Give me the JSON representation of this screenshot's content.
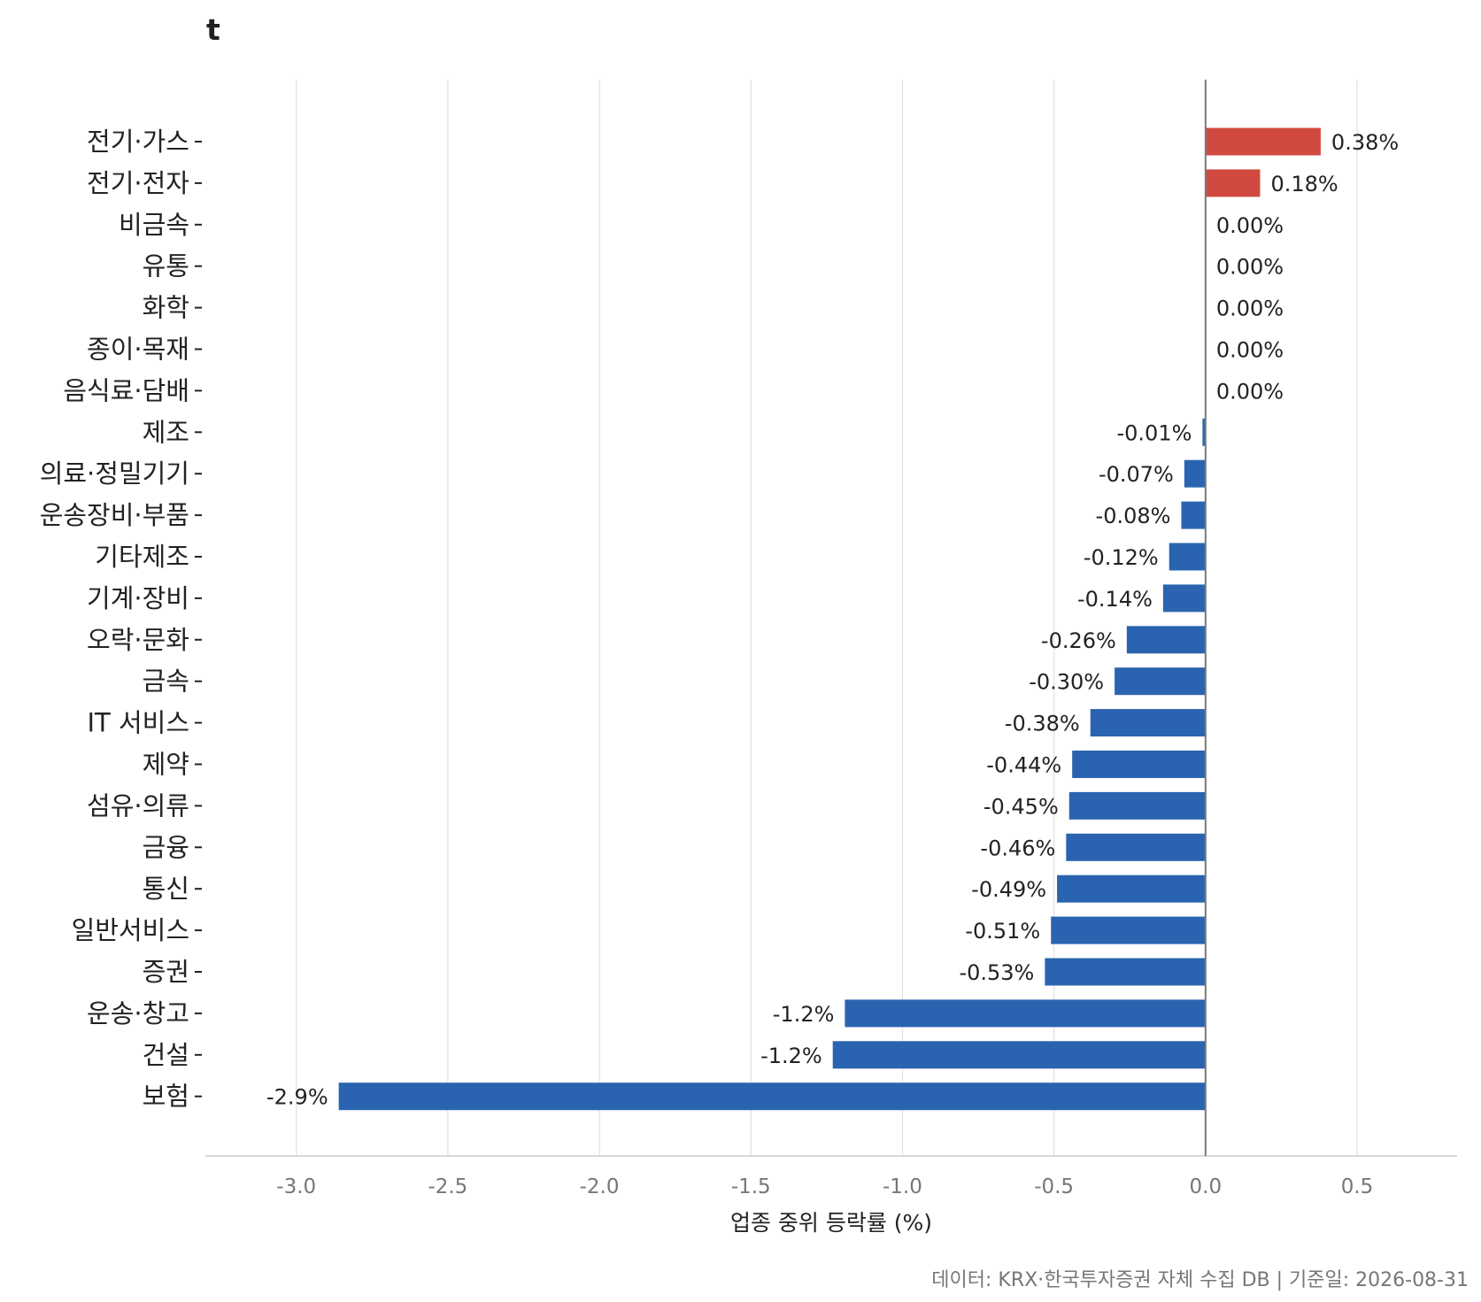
{
  "chart_data": {
    "type": "bar",
    "orientation": "horizontal",
    "title": "t",
    "xlabel": "업종 중위 등락률 (%)",
    "ylabel": "",
    "xlim": [
      -3.3,
      0.83
    ],
    "xticks": [
      -3.0,
      -2.5,
      -2.0,
      -1.5,
      -1.0,
      -0.5,
      0.0,
      0.5
    ],
    "xtick_labels": [
      "-3.0",
      "-2.5",
      "-2.0",
      "-1.5",
      "-1.0",
      "-0.5",
      "0.0",
      "0.5"
    ],
    "grid": "vertical",
    "categories": [
      "전기·가스",
      "전기·전자",
      "비금속",
      "유통",
      "화학",
      "종이·목재",
      "음식료·담배",
      "제조",
      "의료·정밀기기",
      "운송장비·부품",
      "기타제조",
      "기계·장비",
      "오락·문화",
      "금속",
      "IT 서비스",
      "제약",
      "섬유·의류",
      "금융",
      "통신",
      "일반서비스",
      "증권",
      "운송·창고",
      "건설",
      "보험"
    ],
    "values": [
      0.38,
      0.18,
      0.0,
      0.0,
      0.0,
      0.0,
      0.0,
      -0.01,
      -0.07,
      -0.08,
      -0.12,
      -0.14,
      -0.26,
      -0.3,
      -0.38,
      -0.44,
      -0.45,
      -0.46,
      -0.49,
      -0.51,
      -0.53,
      -1.19,
      -1.23,
      -2.86
    ],
    "data_labels": [
      "0.38%",
      "0.18%",
      "0.00%",
      "0.00%",
      "0.00%",
      "0.00%",
      "0.00%",
      "-0.01%",
      "-0.07%",
      "-0.08%",
      "-0.12%",
      "-0.14%",
      "-0.26%",
      "-0.30%",
      "-0.38%",
      "-0.44%",
      "-0.45%",
      "-0.46%",
      "-0.49%",
      "-0.51%",
      "-0.53%",
      "-1.2%",
      "-1.2%",
      "-2.9%"
    ],
    "colors": {
      "positive": "#d24a3f",
      "negative": "#2a64b0",
      "grid": "#e3e3e3",
      "zero_line": "#7a7a7a",
      "axis": "#cccccc",
      "text": "#222222",
      "tick_text": "#777777"
    }
  },
  "caption": "데이터: KRX·한국투자증권 자체 수집 DB  |  기준일: 2026-08-31"
}
